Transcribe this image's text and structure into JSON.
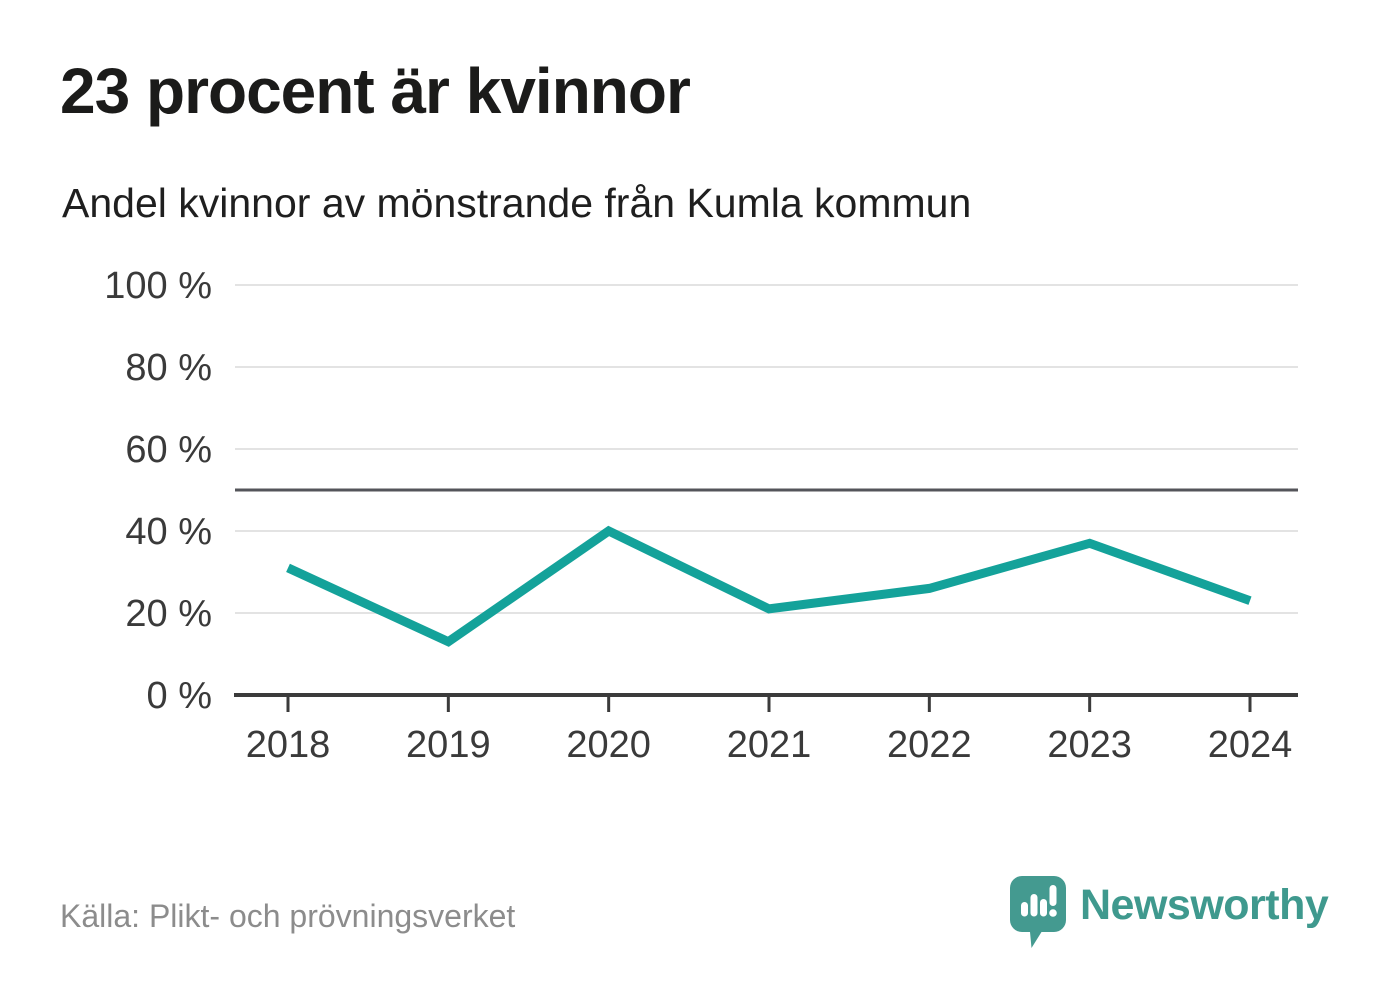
{
  "header": {
    "title": "23 procent är kvinnor",
    "subtitle": "Andel kvinnor av mönstrande från Kumla kommun"
  },
  "chart_data": {
    "type": "line",
    "title": "23 procent är kvinnor",
    "subtitle": "Andel kvinnor av mönstrande från Kumla kommun",
    "categories": [
      "2018",
      "2019",
      "2020",
      "2021",
      "2022",
      "2023",
      "2024"
    ],
    "series": [
      {
        "name": "Andel kvinnor av mönstrande från Kumla kommun",
        "values": [
          31,
          13,
          40,
          21,
          26,
          37,
          23
        ]
      }
    ],
    "unit": "%",
    "ylim": [
      0,
      100
    ],
    "yticks": [
      {
        "value": 0,
        "label": "0 %"
      },
      {
        "value": 20,
        "label": "20 %"
      },
      {
        "value": 40,
        "label": "40 %"
      },
      {
        "value": 60,
        "label": "60 %"
      },
      {
        "value": 80,
        "label": "80 %"
      },
      {
        "value": 100,
        "label": "100 %"
      }
    ],
    "reference_line": 50,
    "grid": true,
    "legend_position": "none",
    "colors": {
      "line": "#14a29a",
      "grid": "#e3e3e3",
      "reference": "#54555a",
      "axis": "#3b3b3b",
      "tick_label": "#3a3a3a"
    }
  },
  "footer": {
    "source": "Källa: Plikt- och prövningsverket",
    "brand": "Newsworthy",
    "brand_color": "#3f998e",
    "logo_color": "#449a90",
    "logo_glyph_color": "#ffffff"
  }
}
